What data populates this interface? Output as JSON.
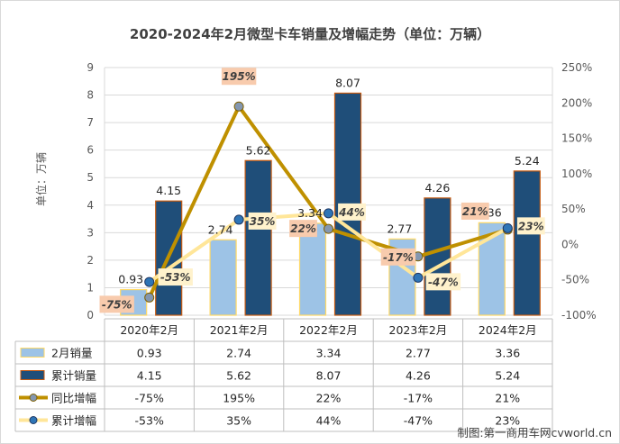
{
  "chart_data": {
    "type": "bar",
    "title": "2020-2024年2月微型卡车销量及增幅走势（单位：万辆）",
    "ylabel": "单位：万辆",
    "ylim": [
      0,
      9
    ],
    "y2lim": [
      -100,
      250
    ],
    "yticks": [
      0,
      1,
      2,
      3,
      4,
      5,
      6,
      7,
      8,
      9
    ],
    "y2ticks": [
      "-100%",
      "-50%",
      "0%",
      "50%",
      "100%",
      "150%",
      "200%",
      "250%"
    ],
    "categories": [
      "2020年2月",
      "2021年2月",
      "2022年2月",
      "2023年2月",
      "2024年2月"
    ],
    "series": [
      {
        "name": "2月销量",
        "kind": "bar",
        "axis": "left",
        "values": [
          0.93,
          2.74,
          3.34,
          2.77,
          3.36
        ],
        "labels": [
          "0.93",
          "2.74",
          "3.34",
          "2.77",
          "3.36"
        ],
        "color": "#9dc3e6"
      },
      {
        "name": "累计销量",
        "kind": "bar",
        "axis": "left",
        "values": [
          4.15,
          5.62,
          8.07,
          4.26,
          5.24
        ],
        "labels": [
          "4.15",
          "5.62",
          "8.07",
          "4.26",
          "5.24"
        ],
        "color": "#1f4e79"
      },
      {
        "name": "同比增幅",
        "kind": "line",
        "axis": "right",
        "values": [
          -75,
          195,
          22,
          -17,
          21
        ],
        "labels": [
          "-75%",
          "195%",
          "22%",
          "-17%",
          "21%"
        ],
        "color": "#bf9000"
      },
      {
        "name": "累计增幅",
        "kind": "line",
        "axis": "right",
        "values": [
          -53,
          35,
          44,
          -47,
          23
        ],
        "labels": [
          "-53%",
          "35%",
          "44%",
          "-47%",
          "23%"
        ],
        "color": "#ffe699"
      }
    ],
    "grid": true,
    "legend": "table-below"
  },
  "credit": "制图:第一商用车网cvworld.cn"
}
